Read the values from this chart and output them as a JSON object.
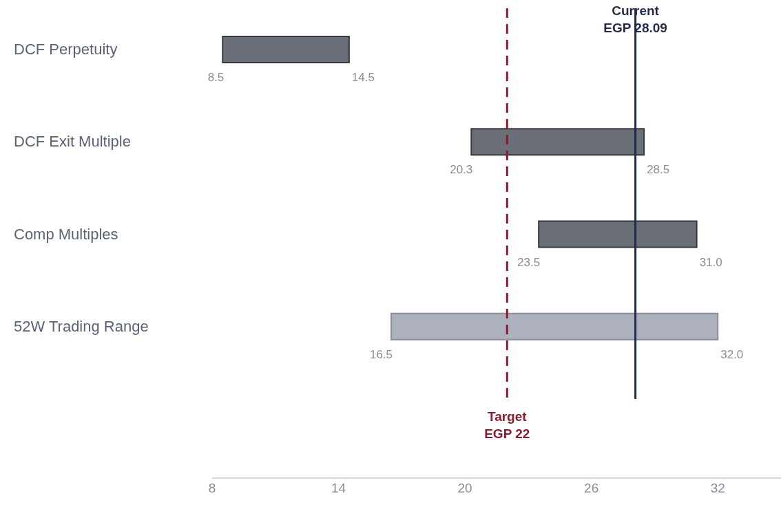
{
  "chart_data": {
    "type": "bar",
    "orientation": "horizontal",
    "categories": [
      "DCF Perpetuity",
      "DCF Exit Multiple",
      "Comp Multiples",
      "52W Trading Range"
    ],
    "base": [
      8.5,
      20.3,
      23.5,
      16.5
    ],
    "values": [
      6,
      8.2,
      7.5,
      15.5
    ],
    "colors": [
      "#6b6f78",
      "#6b6f78",
      "#6b6f78",
      "#adb0bd"
    ],
    "xlim": [
      8,
      35
    ],
    "xticks": [
      8,
      14,
      20,
      26,
      32
    ],
    "grid": false,
    "legend": false,
    "ref_lines": [
      {
        "axis": "x",
        "value": 22,
        "label": "Target EGP 22",
        "color": "#8b1a2b",
        "line_style": "dashed"
      },
      {
        "axis": "x",
        "value": 28.09,
        "label": "Current EGP 28.09",
        "color": "#1f2a4d",
        "line_style": "solid"
      }
    ],
    "annotations": [
      {
        "text": "8.5",
        "x": 8.5,
        "y": "DCF Perpetuity"
      },
      {
        "text": "14.5",
        "x": 14.5,
        "y": "DCF Perpetuity"
      },
      {
        "text": "20.3",
        "x": 20.3,
        "y": "DCF Exit Multiple"
      },
      {
        "text": "28.5",
        "x": 28.5,
        "y": "DCF Exit Multiple"
      },
      {
        "text": "23.5",
        "x": 23.5,
        "y": "Comp Multiples"
      },
      {
        "text": "31.0",
        "x": 31.0,
        "y": "Comp Multiples"
      },
      {
        "text": "16.5",
        "x": 16.5,
        "y": "52W Trading Range"
      },
      {
        "text": "32.0",
        "x": 32.0,
        "y": "52W Trading Range"
      }
    ]
  }
}
